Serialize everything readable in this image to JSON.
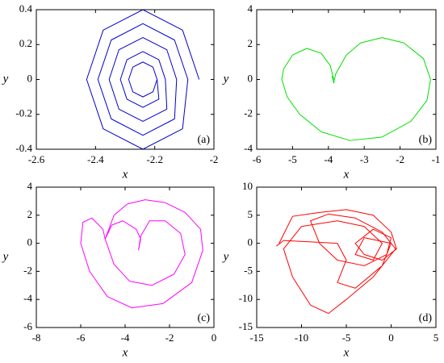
{
  "chart_data": [
    {
      "type": "line",
      "panel_label": "(a)",
      "x_label": "x",
      "y_label": "y",
      "xlim": [
        -2.6,
        -2
      ],
      "xticks": [
        -2.6,
        -2.4,
        -2.2,
        -2
      ],
      "ylim": [
        -0.4,
        0.4
      ],
      "yticks": [
        -0.4,
        -0.2,
        0,
        0.2,
        0.4
      ],
      "series": [
        {
          "color": "#0000cc",
          "x": [
            -2.05,
            -2.106,
            -2.24,
            -2.374,
            -2.43,
            -2.374,
            -2.24,
            -2.106,
            -2.088,
            -2.133,
            -2.24,
            -2.347,
            -2.392,
            -2.347,
            -2.24,
            -2.133,
            -2.126,
            -2.159,
            -2.24,
            -2.321,
            -2.354,
            -2.321,
            -2.24,
            -2.159,
            -2.164,
            -2.186,
            -2.24,
            -2.294,
            -2.316,
            -2.294,
            -2.24,
            -2.186,
            -2.192,
            -2.206,
            -2.24,
            -2.274,
            -2.288,
            -2.274,
            -2.24,
            -2.206,
            -2.192
          ],
          "values": [
            0,
            0.283,
            0.4,
            0.283,
            0,
            -0.283,
            -0.4,
            -0.283,
            0,
            0.226,
            0.32,
            0.226,
            0,
            -0.226,
            -0.32,
            -0.226,
            0,
            0.17,
            0.24,
            0.17,
            0,
            -0.17,
            -0.24,
            -0.17,
            0,
            0.113,
            0.16,
            0.113,
            0,
            -0.113,
            -0.16,
            -0.113,
            0,
            0.071,
            0.1,
            0.071,
            0,
            -0.071,
            -0.1,
            -0.071,
            0
          ]
        }
      ]
    },
    {
      "type": "line",
      "panel_label": "(b)",
      "x_label": "x",
      "y_label": "y",
      "xlim": [
        -6,
        -1
      ],
      "xticks": [
        -6,
        -5,
        -4,
        -3,
        -2,
        -1
      ],
      "ylim": [
        -4,
        4
      ],
      "yticks": [
        -4,
        -2,
        0,
        2,
        4
      ],
      "series": [
        {
          "color": "#00e000",
          "x": [
            -3.85,
            -3.95,
            -4.2,
            -4.6,
            -5.0,
            -5.25,
            -5.3,
            -5.15,
            -4.8,
            -4.2,
            -3.4,
            -2.5,
            -1.7,
            -1.25,
            -1.15,
            -1.35,
            -1.9,
            -2.5,
            -3.1,
            -3.5,
            -3.8,
            -3.85,
            -3.9
          ],
          "values": [
            0,
            0.8,
            1.5,
            1.78,
            1.4,
            0.6,
            0,
            -1.0,
            -2.0,
            -3.0,
            -3.5,
            -3.3,
            -2.4,
            -1.2,
            0,
            1.2,
            2.1,
            2.4,
            2.1,
            1.4,
            0.3,
            -0.2,
            0.2
          ]
        }
      ]
    },
    {
      "type": "line",
      "panel_label": "(c)",
      "x_label": "x",
      "y_label": "y",
      "xlim": [
        -8,
        0
      ],
      "xticks": [
        -8,
        -6,
        -4,
        -2,
        0
      ],
      "ylim": [
        -6,
        4
      ],
      "yticks": [
        -6,
        -4,
        -2,
        0,
        2,
        4
      ],
      "series": [
        {
          "color": "#ff00ff",
          "x": [
            -3.4,
            -3.3,
            -3.5,
            -4.1,
            -4.6,
            -4.9,
            -5.0,
            -5.5,
            -5.9,
            -6.0,
            -5.6,
            -4.8,
            -3.7,
            -2.3,
            -1.0,
            -0.5,
            -0.6,
            -1.3,
            -2.2,
            -3.1,
            -3.9,
            -4.5,
            -4.9,
            -4.5,
            -3.8,
            -2.8,
            -1.8,
            -1.3,
            -1.5,
            -2.2,
            -2.9,
            -3.3,
            -3.4
          ],
          "values": [
            -0.5,
            0.3,
            1.0,
            1.6,
            1.3,
            0.3,
            1.0,
            1.8,
            1.5,
            0,
            -2.0,
            -3.8,
            -4.6,
            -4.3,
            -2.8,
            -0.5,
            1.0,
            2.2,
            2.9,
            3.1,
            2.8,
            2.0,
            0.3,
            -1.5,
            -2.7,
            -3.0,
            -2.2,
            -0.8,
            0.7,
            1.6,
            1.6,
            0.5,
            -0.5
          ]
        }
      ]
    },
    {
      "type": "line",
      "panel_label": "(d)",
      "x_label": "x",
      "y_label": "y",
      "xlim": [
        -15,
        5
      ],
      "xticks": [
        -15,
        -10,
        -5,
        0,
        5
      ],
      "ylim": [
        -15,
        10
      ],
      "yticks": [
        -15,
        -10,
        -5,
        0,
        5,
        10
      ],
      "series": [
        {
          "color": "#ff0000",
          "x": [
            -12.5,
            -11,
            -8,
            -5,
            -2,
            0,
            0.6,
            -1,
            -3,
            -4,
            -2,
            0,
            -0.5,
            -3,
            -6,
            -8,
            -9,
            -7,
            -4,
            -1,
            0.5,
            -2,
            -5,
            -7,
            -9,
            -11,
            -12,
            -10,
            -6,
            -3,
            -1,
            -2,
            -4,
            -3,
            0,
            -1,
            -4,
            -6,
            -5,
            -6,
            -12,
            -12.8
          ],
          "values": [
            0,
            4.8,
            5.5,
            6,
            5,
            2,
            -1,
            -3,
            -2,
            0,
            2.5,
            1,
            -2,
            -4,
            -3,
            0,
            4,
            5.2,
            4.5,
            2,
            -1,
            -6,
            -10,
            -12.5,
            -11,
            -6,
            -1,
            3,
            4,
            3,
            0,
            -3,
            -2,
            1,
            0,
            -4,
            -8,
            -7,
            -3,
            0,
            0.5,
            -0.5
          ]
        }
      ]
    }
  ]
}
